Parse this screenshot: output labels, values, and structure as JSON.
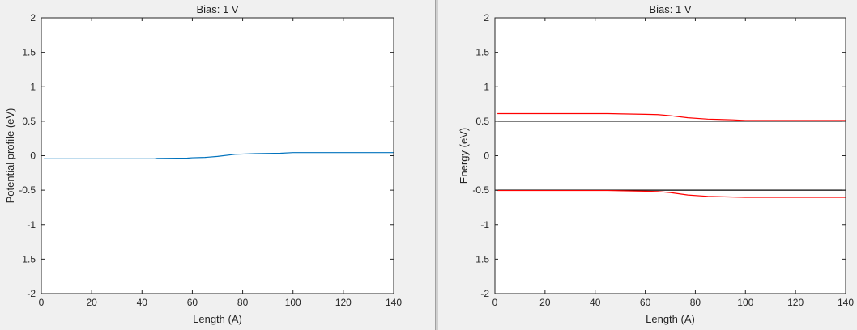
{
  "chart_data": [
    {
      "type": "line",
      "title": "Bias: 1 V",
      "xlabel": "Length (A)",
      "ylabel": "Potential profile (eV)",
      "xlim": [
        0,
        140
      ],
      "ylim": [
        -2,
        2
      ],
      "xticks": [
        "0",
        "20",
        "40",
        "60",
        "80",
        "100",
        "120",
        "140"
      ],
      "yticks": [
        "-2",
        "-1.5",
        "-1",
        "-0.5",
        "0",
        "0.5",
        "1",
        "1.5",
        "2"
      ],
      "grid": false,
      "series": [
        {
          "color": "#0072bd",
          "x": [
            1,
            45,
            46,
            58,
            60,
            65,
            70,
            77,
            85,
            95,
            100,
            140
          ],
          "y": [
            -0.045,
            -0.045,
            -0.04,
            -0.035,
            -0.03,
            -0.025,
            -0.01,
            0.02,
            0.03,
            0.035,
            0.045,
            0.045
          ]
        }
      ]
    },
    {
      "type": "line",
      "title": "Bias: 1 V",
      "xlabel": "Length (A)",
      "ylabel": "Energy (eV)",
      "xlim": [
        0,
        140
      ],
      "ylim": [
        -2,
        2
      ],
      "xticks": [
        "0",
        "20",
        "40",
        "60",
        "80",
        "100",
        "120",
        "140"
      ],
      "yticks": [
        "-2",
        "-1.5",
        "-1",
        "-0.5",
        "0",
        "0.5",
        "1",
        "1.5",
        "2"
      ],
      "grid": false,
      "series": [
        {
          "color": "#000000",
          "x": [
            0,
            140
          ],
          "y": [
            0.5,
            0.5
          ]
        },
        {
          "color": "#000000",
          "x": [
            0,
            140
          ],
          "y": [
            -0.5,
            -0.5
          ]
        },
        {
          "color": "#ff0000",
          "x": [
            1,
            45,
            60,
            65,
            70,
            77,
            85,
            95,
            100,
            140
          ],
          "y": [
            0.61,
            0.61,
            0.6,
            0.595,
            0.58,
            0.55,
            0.53,
            0.52,
            0.51,
            0.51
          ]
        },
        {
          "color": "#ff0000",
          "x": [
            1,
            45,
            60,
            65,
            70,
            77,
            85,
            95,
            100,
            140
          ],
          "y": [
            -0.505,
            -0.505,
            -0.515,
            -0.52,
            -0.535,
            -0.57,
            -0.59,
            -0.6,
            -0.605,
            -0.605
          ]
        }
      ]
    }
  ]
}
